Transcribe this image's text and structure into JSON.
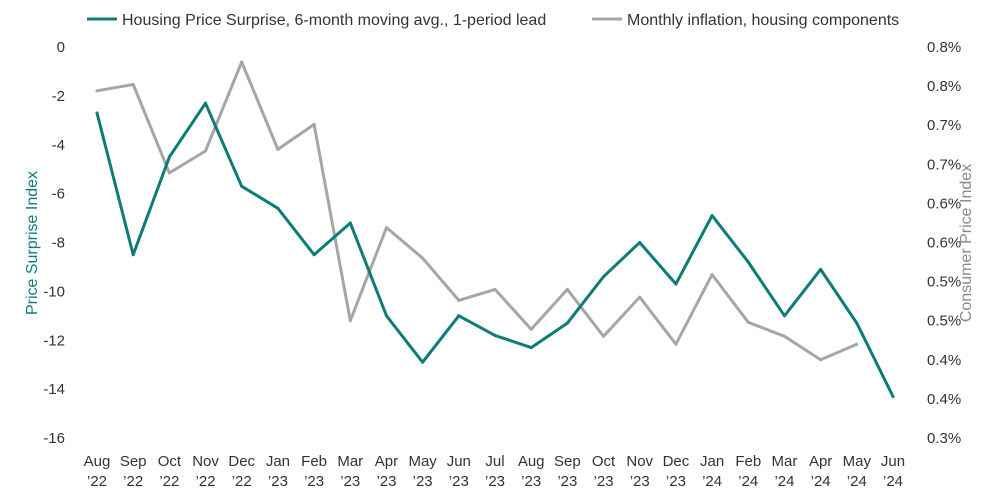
{
  "chart_data": {
    "type": "line",
    "categories": [
      [
        "Aug",
        "’22"
      ],
      [
        "Sep",
        "’22"
      ],
      [
        "Oct",
        "’22"
      ],
      [
        "Nov",
        "’22"
      ],
      [
        "Dec",
        "’22"
      ],
      [
        "Jan",
        "’23"
      ],
      [
        "Feb",
        "’23"
      ],
      [
        "Mar",
        "’23"
      ],
      [
        "Apr",
        "’23"
      ],
      [
        "May",
        "’23"
      ],
      [
        "Jun",
        "’23"
      ],
      [
        "Jul",
        "’23"
      ],
      [
        "Aug",
        "’23"
      ],
      [
        "Sep",
        "’23"
      ],
      [
        "Oct",
        "’23"
      ],
      [
        "Nov",
        "’23"
      ],
      [
        "Dec",
        "’23"
      ],
      [
        "Jan",
        "’24"
      ],
      [
        "Feb",
        "’24"
      ],
      [
        "Mar",
        "’24"
      ],
      [
        "Apr",
        "’24"
      ],
      [
        "May",
        "’24"
      ],
      [
        "Jun",
        "’24"
      ]
    ],
    "left_axis": {
      "label": "Price Surprise Index",
      "min": -16,
      "max": 0,
      "ticks": [
        "0",
        "-2",
        "-4",
        "-6",
        "-8",
        "-10",
        "-12",
        "-14",
        "-16"
      ],
      "color": "#0e7c76"
    },
    "right_axis": {
      "label": "Consumer Price Index",
      "min": 0.3,
      "max": 0.8,
      "ticks": [
        "0.8%",
        "0.8%",
        "0.7%",
        "0.7%",
        "0.6%",
        "0.6%",
        "0.5%",
        "0.5%",
        "0.4%",
        "0.4%",
        "0.3%"
      ],
      "color": "#8a8a8a"
    },
    "series": [
      {
        "name": "Housing Price Surprise, 6-month moving avg., 1-period lead",
        "axis": "left",
        "color": "#0e7c76",
        "values": [
          -2.7,
          -8.5,
          -4.5,
          -2.3,
          -5.7,
          -6.6,
          -8.5,
          -7.2,
          -11.0,
          -12.9,
          -11.0,
          -11.8,
          -12.3,
          -11.3,
          -9.4,
          -8.0,
          -9.7,
          -6.9,
          -8.8,
          -11.0,
          -9.1,
          -11.3,
          -14.3
        ]
      },
      {
        "name": "Monthly inflation, housing components",
        "axis": "right",
        "color": "#a6a6a6",
        "values": [
          0.744,
          0.752,
          0.639,
          0.667,
          0.781,
          0.669,
          0.701,
          0.45,
          0.569,
          0.53,
          0.476,
          0.49,
          0.439,
          0.49,
          0.43,
          0.48,
          0.42,
          0.509,
          0.448,
          0.43,
          0.4,
          0.42,
          null
        ]
      }
    ],
    "grid": false,
    "legend_position": "top"
  }
}
